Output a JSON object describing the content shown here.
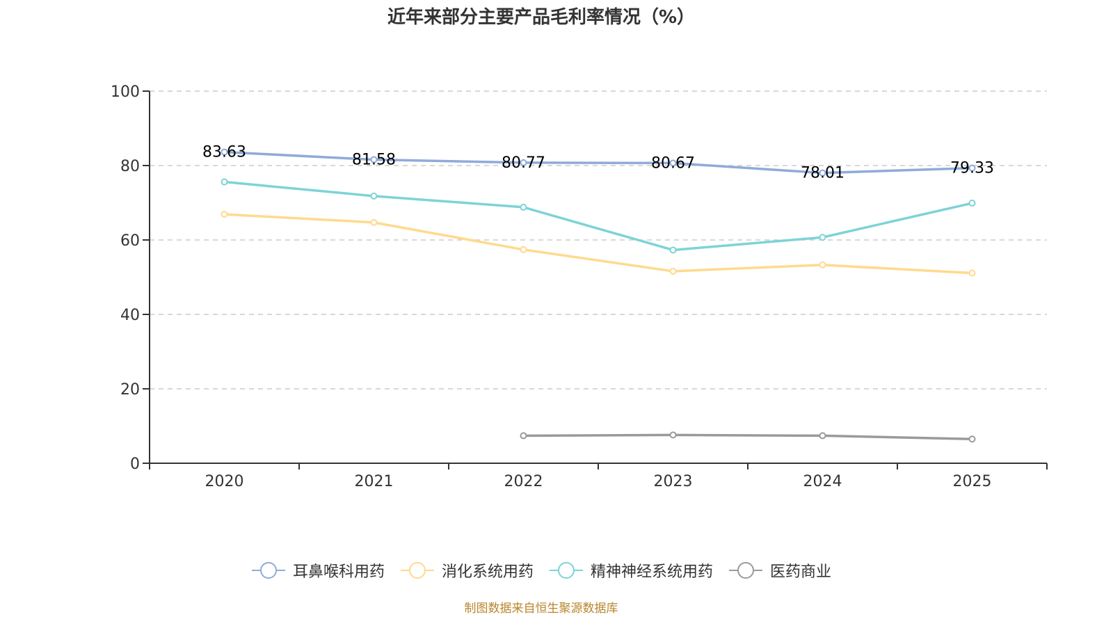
{
  "title": "近年来部分主要产品毛利率情况（%）",
  "footer": "制图数据来自恒生聚源数据库",
  "chart_data": {
    "type": "line",
    "title": "近年来部分主要产品毛利率情况（%）",
    "xlabel": "",
    "ylabel": "",
    "categories": [
      "2020",
      "2021",
      "2022",
      "2023",
      "2024",
      "2025"
    ],
    "ylim": [
      0,
      100
    ],
    "yticks": [
      "0",
      "20",
      "40",
      "60",
      "80",
      "100"
    ],
    "grid": true,
    "legend_position": "bottom",
    "series": [
      {
        "name": "耳鼻喉科用药",
        "color": "#8fabd9",
        "values": [
          83.63,
          81.58,
          80.77,
          80.67,
          78.01,
          79.33
        ],
        "labels": [
          "83.63",
          "81.58",
          "80.77",
          "80.67",
          "78.01",
          "79.33"
        ]
      },
      {
        "name": "消化系统用药",
        "color": "#ffd98e",
        "values": [
          66.9,
          64.7,
          57.4,
          51.6,
          53.3,
          51.1
        ],
        "labels": null
      },
      {
        "name": "精神神经系统用药",
        "color": "#7ed3d6",
        "values": [
          75.6,
          71.8,
          68.8,
          57.3,
          60.7,
          69.9
        ],
        "labels": null
      },
      {
        "name": "医药商业",
        "color": "#9a9a9a",
        "values": [
          null,
          null,
          7.4,
          7.6,
          7.4,
          6.5
        ],
        "labels": null
      }
    ]
  }
}
